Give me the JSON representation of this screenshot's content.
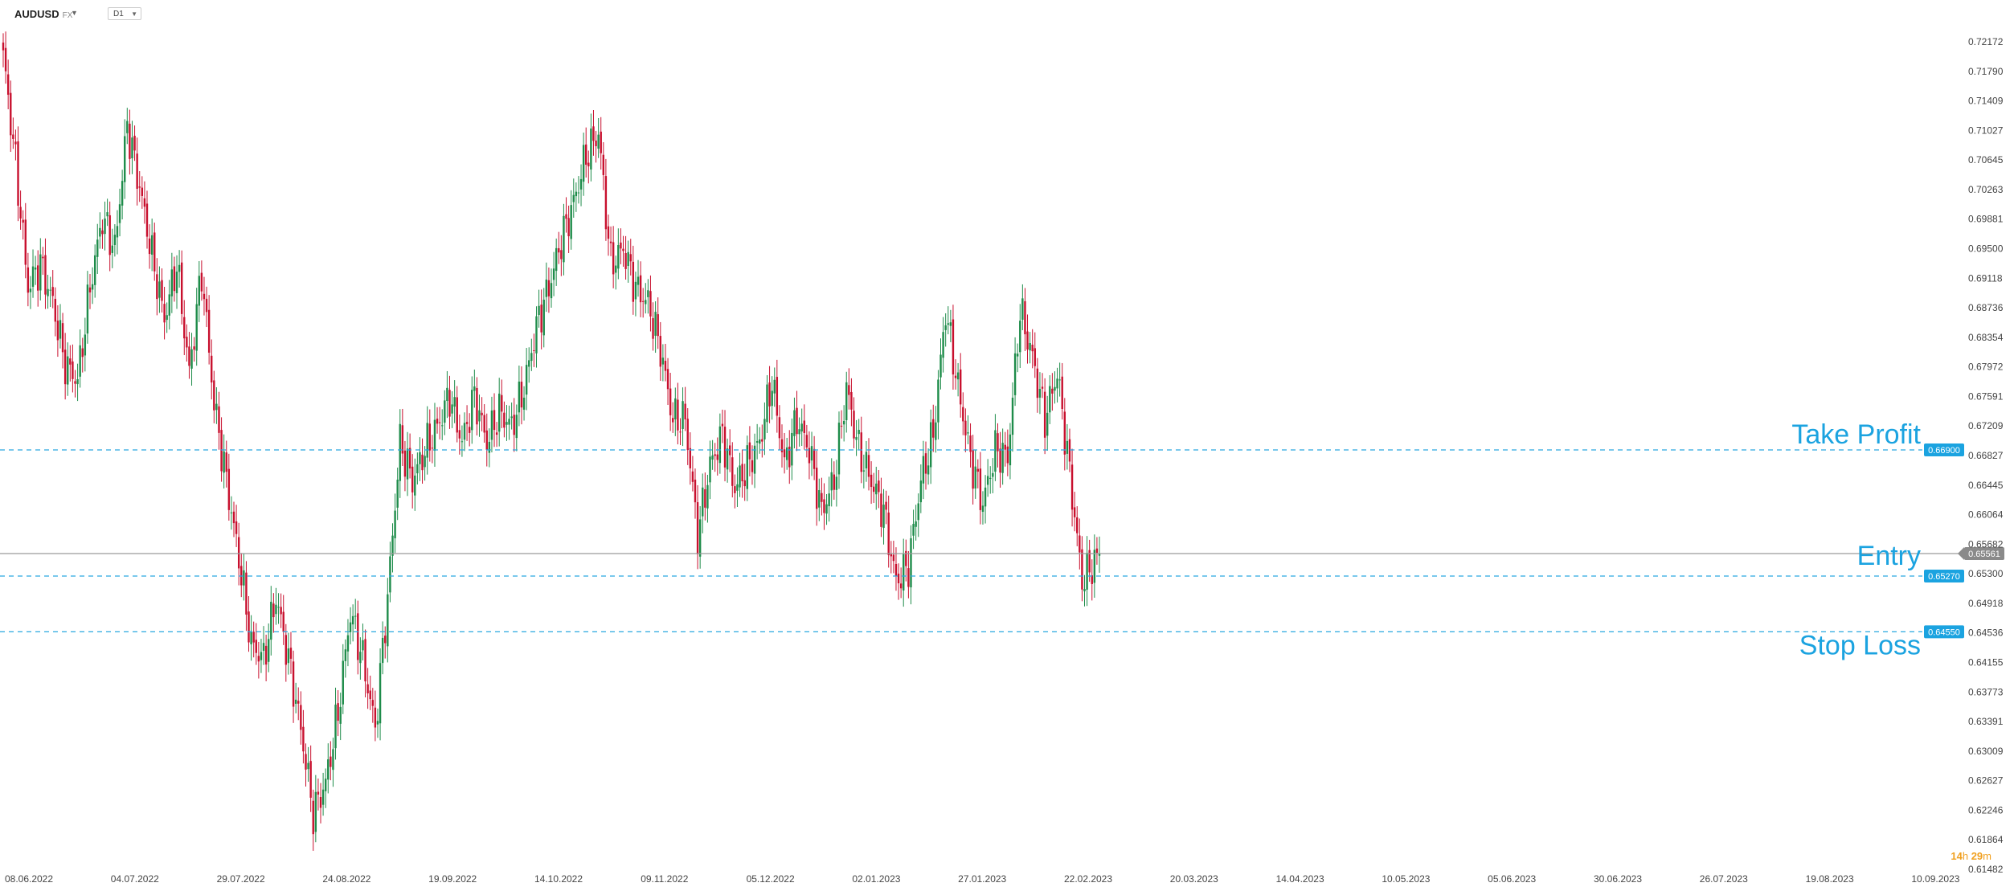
{
  "toolbar": {
    "symbol": "AUDUSD",
    "symbol_suffix": "FX",
    "timeframe": "D1"
  },
  "countdown": {
    "hours": "14",
    "h_unit": "h",
    "minutes": "29",
    "m_unit": "m"
  },
  "colors": {
    "bull": "#1e8c4a",
    "bear": "#c8102e",
    "level_line": "#29a8e0",
    "level_text": "#1ba3e0",
    "price_line": "#9a9a9a",
    "price_badge": "#8a8a8a"
  },
  "chart_data": {
    "type": "candlestick",
    "title": "",
    "ylim": [
      0.61482,
      0.72172
    ],
    "y_ticks": [
      "0.72172",
      "0.71790",
      "0.71409",
      "0.71027",
      "0.70645",
      "0.70263",
      "0.69881",
      "0.69500",
      "0.69118",
      "0.68736",
      "0.68354",
      "0.67972",
      "0.67591",
      "0.67209",
      "0.66827",
      "0.66445",
      "0.66064",
      "0.65682",
      "0.65300",
      "0.64918",
      "0.64536",
      "0.64155",
      "0.63773",
      "0.63391",
      "0.63009",
      "0.62627",
      "0.62246",
      "0.61864",
      "0.61482"
    ],
    "x_ticks": [
      "08.06.2022",
      "04.07.2022",
      "29.07.2022",
      "24.08.2022",
      "19.09.2022",
      "14.10.2022",
      "09.11.2022",
      "05.12.2022",
      "02.01.2023",
      "27.01.2023",
      "22.02.2023",
      "20.03.2023",
      "14.04.2023",
      "10.05.2023",
      "05.06.2023",
      "30.06.2023",
      "26.07.2023",
      "19.08.2023",
      "10.09.2023"
    ],
    "price_anchors": [
      [
        0,
        0.72
      ],
      [
        5,
        0.706
      ],
      [
        10,
        0.69
      ],
      [
        15,
        0.693
      ],
      [
        20,
        0.688
      ],
      [
        25,
        0.68
      ],
      [
        30,
        0.678
      ],
      [
        35,
        0.69
      ],
      [
        40,
        0.699
      ],
      [
        45,
        0.695
      ],
      [
        50,
        0.711
      ],
      [
        55,
        0.703
      ],
      [
        60,
        0.694
      ],
      [
        65,
        0.686
      ],
      [
        70,
        0.693
      ],
      [
        75,
        0.679
      ],
      [
        80,
        0.692
      ],
      [
        85,
        0.675
      ],
      [
        90,
        0.665
      ],
      [
        95,
        0.655
      ],
      [
        100,
        0.644
      ],
      [
        105,
        0.642
      ],
      [
        110,
        0.65
      ],
      [
        115,
        0.642
      ],
      [
        120,
        0.633
      ],
      [
        125,
        0.622
      ],
      [
        130,
        0.626
      ],
      [
        135,
        0.635
      ],
      [
        140,
        0.648
      ],
      [
        145,
        0.642
      ],
      [
        150,
        0.633
      ],
      [
        155,
        0.65
      ],
      [
        160,
        0.67
      ],
      [
        165,
        0.665
      ],
      [
        170,
        0.669
      ],
      [
        175,
        0.672
      ],
      [
        180,
        0.676
      ],
      [
        185,
        0.67
      ],
      [
        190,
        0.676
      ],
      [
        195,
        0.67
      ],
      [
        200,
        0.674
      ],
      [
        205,
        0.672
      ],
      [
        210,
        0.677
      ],
      [
        215,
        0.685
      ],
      [
        220,
        0.69
      ],
      [
        225,
        0.696
      ],
      [
        230,
        0.701
      ],
      [
        235,
        0.707
      ],
      [
        240,
        0.71
      ],
      [
        245,
        0.693
      ],
      [
        250,
        0.695
      ],
      [
        255,
        0.69
      ],
      [
        260,
        0.688
      ],
      [
        265,
        0.682
      ],
      [
        270,
        0.673
      ],
      [
        275,
        0.673
      ],
      [
        280,
        0.658
      ],
      [
        285,
        0.667
      ],
      [
        290,
        0.671
      ],
      [
        295,
        0.664
      ],
      [
        300,
        0.667
      ],
      [
        305,
        0.67
      ],
      [
        310,
        0.678
      ],
      [
        315,
        0.667
      ],
      [
        320,
        0.673
      ],
      [
        325,
        0.669
      ],
      [
        330,
        0.661
      ],
      [
        335,
        0.665
      ],
      [
        340,
        0.677
      ],
      [
        345,
        0.669
      ],
      [
        350,
        0.665
      ],
      [
        355,
        0.661
      ],
      [
        360,
        0.652
      ],
      [
        365,
        0.654
      ],
      [
        370,
        0.665
      ],
      [
        375,
        0.671
      ],
      [
        380,
        0.687
      ],
      [
        385,
        0.677
      ],
      [
        390,
        0.668
      ],
      [
        395,
        0.662
      ],
      [
        400,
        0.669
      ],
      [
        405,
        0.668
      ],
      [
        410,
        0.687
      ],
      [
        415,
        0.681
      ],
      [
        420,
        0.673
      ],
      [
        425,
        0.679
      ],
      [
        430,
        0.666
      ],
      [
        435,
        0.652
      ],
      [
        440,
        0.6545
      ],
      [
        442,
        0.6556
      ]
    ],
    "last_price": 0.65561,
    "price_line": {
      "value": 0.65561,
      "label": "0.65561"
    },
    "levels": [
      {
        "name": "Take Profit",
        "value": 0.669,
        "label": "0.66900"
      },
      {
        "name": "Entry",
        "value": 0.6527,
        "label": "0.65270"
      },
      {
        "name": "Stop Loss",
        "value": 0.6455,
        "label": "0.64550"
      }
    ]
  }
}
